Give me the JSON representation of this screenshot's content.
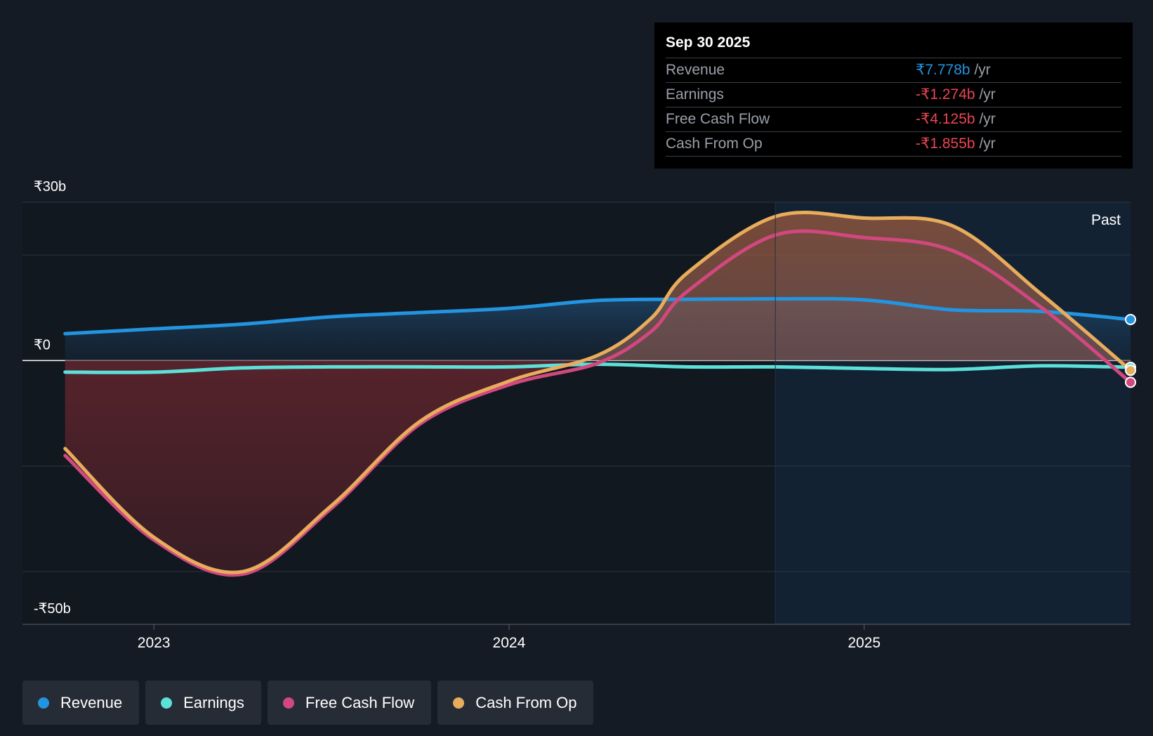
{
  "chart_data": {
    "type": "area",
    "title": "",
    "x_range": [
      2022.63,
      2025.75
    ],
    "ylim": [
      -50,
      30
    ],
    "y_tick_labels": [
      {
        "value": 30,
        "label": "₹30b"
      },
      {
        "value": 0,
        "label": "₹0"
      },
      {
        "value": -50,
        "label": "-₹50b"
      }
    ],
    "gridlines": [
      30,
      20,
      0,
      -20,
      -40,
      -50
    ],
    "x_ticks": [
      {
        "value": 2023.0,
        "label": "2023"
      },
      {
        "value": 2024.0,
        "label": "2024"
      },
      {
        "value": 2025.0,
        "label": "2025"
      }
    ],
    "past_start": 2024.75,
    "past_label": "Past",
    "series": [
      {
        "name": "Revenue",
        "color": "#2394df",
        "x": [
          2022.75,
          2023.0,
          2023.25,
          2023.5,
          2023.75,
          2024.0,
          2024.25,
          2024.5,
          2024.75,
          2025.0,
          2025.25,
          2025.5,
          2025.75
        ],
        "values": [
          5.1,
          6.0,
          6.9,
          8.3,
          9.1,
          9.9,
          11.4,
          11.6,
          11.7,
          11.5,
          9.6,
          9.3,
          7.778
        ]
      },
      {
        "name": "Earnings",
        "color": "#5ce0d8",
        "x": [
          2022.75,
          2023.0,
          2023.25,
          2023.5,
          2023.75,
          2024.0,
          2024.25,
          2024.5,
          2024.75,
          2025.0,
          2025.25,
          2025.5,
          2025.75
        ],
        "values": [
          -2.2,
          -2.2,
          -1.4,
          -1.2,
          -1.2,
          -1.2,
          -0.7,
          -1.2,
          -1.2,
          -1.5,
          -1.7,
          -1.0,
          -1.274
        ]
      },
      {
        "name": "Free Cash Flow",
        "color": "#d1487f",
        "x": [
          2022.75,
          2023.0,
          2023.25,
          2023.5,
          2023.75,
          2024.0,
          2024.25,
          2024.4,
          2024.5,
          2024.75,
          2025.0,
          2025.25,
          2025.5,
          2025.75
        ],
        "values": [
          -18,
          -34,
          -40.5,
          -28,
          -12,
          -4.6,
          -0.5,
          5.5,
          13,
          23.8,
          23.3,
          20.8,
          10,
          -4.125
        ]
      },
      {
        "name": "Cash From Op",
        "color": "#e7ac5c",
        "x": [
          2022.75,
          2023.0,
          2023.25,
          2023.5,
          2023.75,
          2024.0,
          2024.25,
          2024.4,
          2024.5,
          2024.75,
          2025.0,
          2025.25,
          2025.5,
          2025.75
        ],
        "values": [
          -16.7,
          -33.5,
          -40.0,
          -27.5,
          -11.5,
          -3.9,
          1.0,
          8.0,
          16.5,
          27.3,
          27.0,
          25.5,
          12.5,
          -1.855
        ]
      }
    ]
  },
  "tooltip": {
    "date": "Sep 30 2025",
    "rows": [
      {
        "label": "Revenue",
        "value": "₹7.778b",
        "unit": "/yr",
        "color": "#2394df"
      },
      {
        "label": "Earnings",
        "value": "-₹1.274b",
        "unit": "/yr",
        "color": "#e84654"
      },
      {
        "label": "Free Cash Flow",
        "value": "-₹4.125b",
        "unit": "/yr",
        "color": "#e84654"
      },
      {
        "label": "Cash From Op",
        "value": "-₹1.855b",
        "unit": "/yr",
        "color": "#e84654"
      }
    ]
  },
  "legend": [
    {
      "label": "Revenue",
      "color": "#2394df"
    },
    {
      "label": "Earnings",
      "color": "#5ce0d8"
    },
    {
      "label": "Free Cash Flow",
      "color": "#d1487f"
    },
    {
      "label": "Cash From Op",
      "color": "#e7ac5c"
    }
  ]
}
